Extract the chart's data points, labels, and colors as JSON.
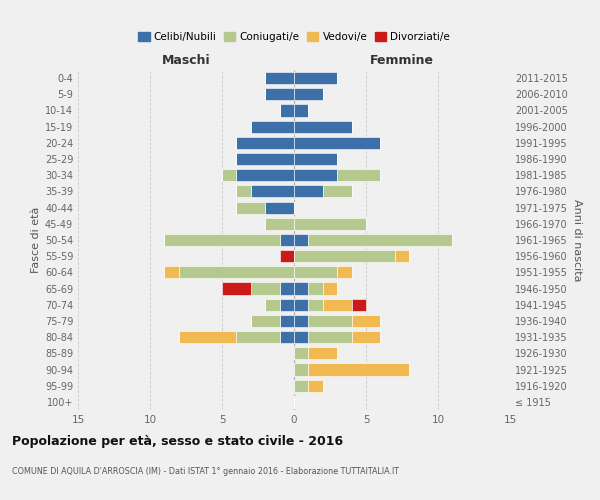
{
  "age_groups": [
    "100+",
    "95-99",
    "90-94",
    "85-89",
    "80-84",
    "75-79",
    "70-74",
    "65-69",
    "60-64",
    "55-59",
    "50-54",
    "45-49",
    "40-44",
    "35-39",
    "30-34",
    "25-29",
    "20-24",
    "15-19",
    "10-14",
    "5-9",
    "0-4"
  ],
  "birth_years": [
    "≤ 1915",
    "1916-1920",
    "1921-1925",
    "1926-1930",
    "1931-1935",
    "1936-1940",
    "1941-1945",
    "1946-1950",
    "1951-1955",
    "1956-1960",
    "1961-1965",
    "1966-1970",
    "1971-1975",
    "1976-1980",
    "1981-1985",
    "1986-1990",
    "1991-1995",
    "1996-2000",
    "2001-2005",
    "2006-2010",
    "2011-2015"
  ],
  "colors": {
    "celibi": "#3d6fa8",
    "coniugati": "#b5c98e",
    "vedovi": "#f0b952",
    "divorziati": "#cc1a1a"
  },
  "maschi": {
    "celibi": [
      0,
      0,
      0,
      0,
      1,
      1,
      1,
      1,
      0,
      0,
      1,
      0,
      2,
      3,
      4,
      4,
      4,
      3,
      1,
      2,
      2
    ],
    "coniugati": [
      0,
      0,
      0,
      0,
      3,
      2,
      1,
      2,
      8,
      0,
      8,
      2,
      2,
      1,
      1,
      0,
      0,
      0,
      0,
      0,
      0
    ],
    "vedovi": [
      0,
      0,
      0,
      0,
      4,
      0,
      0,
      0,
      1,
      0,
      0,
      0,
      0,
      0,
      0,
      0,
      0,
      0,
      0,
      0,
      0
    ],
    "divorziati": [
      0,
      0,
      0,
      0,
      0,
      0,
      0,
      2,
      0,
      1,
      0,
      0,
      0,
      0,
      0,
      0,
      0,
      0,
      0,
      0,
      0
    ]
  },
  "femmine": {
    "celibi": [
      0,
      0,
      0,
      0,
      1,
      1,
      1,
      1,
      0,
      0,
      1,
      0,
      0,
      2,
      3,
      3,
      6,
      4,
      1,
      2,
      3
    ],
    "coniugati": [
      0,
      1,
      1,
      1,
      3,
      3,
      1,
      1,
      3,
      7,
      10,
      5,
      0,
      2,
      3,
      0,
      0,
      0,
      0,
      0,
      0
    ],
    "vedovi": [
      0,
      1,
      7,
      2,
      2,
      2,
      2,
      1,
      1,
      1,
      0,
      0,
      0,
      0,
      0,
      0,
      0,
      0,
      0,
      0,
      0
    ],
    "divorziati": [
      0,
      0,
      0,
      0,
      0,
      0,
      1,
      0,
      0,
      0,
      0,
      0,
      0,
      0,
      0,
      0,
      0,
      0,
      0,
      0,
      0
    ]
  },
  "xlim": 15,
  "title": "Popolazione per età, sesso e stato civile - 2016",
  "subtitle": "COMUNE DI AQUILA D'ARROSCIA (IM) - Dati ISTAT 1° gennaio 2016 - Elaborazione TUTTAITALIA.IT",
  "xlabel_left": "Maschi",
  "xlabel_right": "Femmine",
  "ylabel": "Fasce di età",
  "ylabel_right": "Anni di nascita",
  "legend_labels": [
    "Celibi/Nubili",
    "Coniugati/e",
    "Vedovi/e",
    "Divorziati/e"
  ],
  "background_color": "#f0f0f0"
}
